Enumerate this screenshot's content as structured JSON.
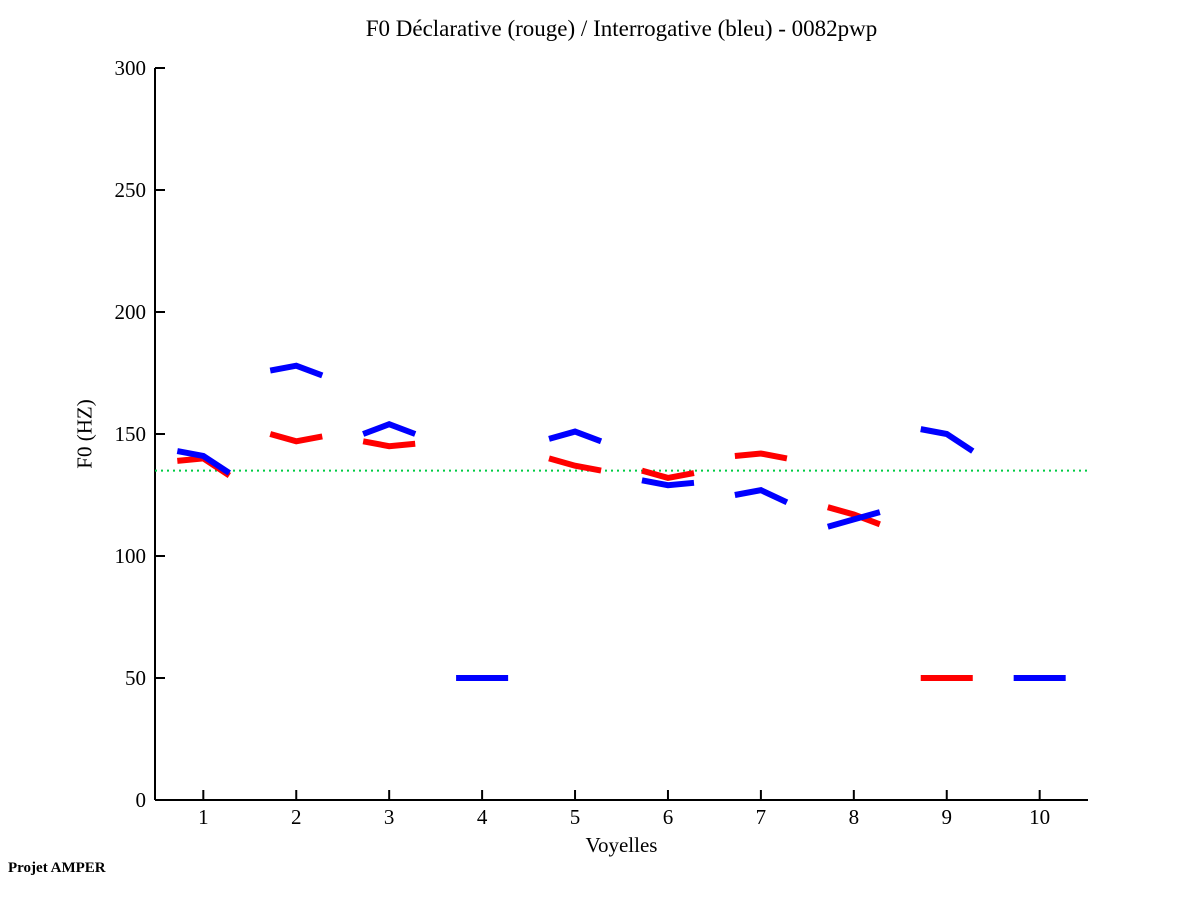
{
  "chart_data": {
    "type": "line",
    "title": "F0 Déclarative (rouge) / Interrogative (bleu) - 0082pwp",
    "xlabel": "Voyelles",
    "ylabel": "F0 (HZ)",
    "footer": "Projet AMPER",
    "xlim": [
      0.48,
      10.52
    ],
    "ylim": [
      0,
      300
    ],
    "yticks": [
      0,
      50,
      100,
      150,
      200,
      250,
      300
    ],
    "xticks": [
      1,
      2,
      3,
      4,
      5,
      6,
      7,
      8,
      9,
      10
    ],
    "grid": false,
    "legend": "encoded in title (rouge = red declarative, bleu = blue interrogative)",
    "reference_line": {
      "value": 135,
      "color": "#00CC44",
      "style": "dotted"
    },
    "point_offsets": [
      -0.28,
      0,
      0.28
    ],
    "missing_data_value": 50,
    "series": [
      {
        "key": "declarative",
        "name": "Déclarative (rouge)",
        "color": "#FF0000",
        "values_by_vowel": [
          [
            139,
            140,
            133
          ],
          [
            150,
            147,
            149
          ],
          [
            147,
            145,
            146
          ],
          null,
          [
            140,
            137,
            135
          ],
          [
            135,
            132,
            134
          ],
          [
            141,
            142,
            140
          ],
          [
            120,
            117,
            113
          ],
          [
            50,
            50,
            50
          ],
          null
        ]
      },
      {
        "key": "interrogative",
        "name": "Interrogative (bleu)",
        "color": "#0000FF",
        "values_by_vowel": [
          [
            143,
            141,
            134
          ],
          [
            176,
            178,
            174
          ],
          [
            150,
            154,
            150
          ],
          [
            50,
            50,
            50
          ],
          [
            148,
            151,
            147
          ],
          [
            131,
            129,
            130
          ],
          [
            125,
            127,
            122
          ],
          [
            112,
            115,
            118
          ],
          [
            152,
            150,
            143
          ],
          [
            50,
            50,
            50
          ]
        ]
      }
    ]
  }
}
